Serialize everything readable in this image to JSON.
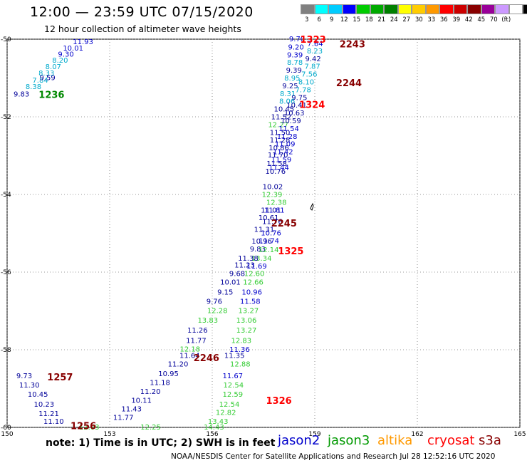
{
  "header": {
    "title": "12:00 — 23:59 UTC 07/15/2020",
    "subtitle": "12 hour collection of altimeter wave heights"
  },
  "colorbar": {
    "colors": [
      "#808080",
      "#00ffff",
      "#00ccff",
      "#0000ff",
      "#00cc00",
      "#00aa00",
      "#008000",
      "#ffff00",
      "#ffcc00",
      "#ff9900",
      "#ff0000",
      "#cc0000",
      "#880000",
      "#990099",
      "#cc99ff",
      "#ffffff",
      "#000000"
    ],
    "labels": [
      "3",
      "6",
      "9",
      "12",
      "15",
      "18",
      "21",
      "24",
      "27",
      "30",
      "33",
      "36",
      "39",
      "42",
      "45",
      "70",
      "(ft)"
    ]
  },
  "chart_data": {
    "type": "scatter",
    "xlim": [
      150,
      165
    ],
    "ylim": [
      -60,
      -50
    ],
    "x_ticks": [
      "150",
      "153",
      "156",
      "159",
      "162",
      "165"
    ],
    "y_ticks": [
      "-50",
      "-52",
      "-54",
      "-56",
      "-58",
      "-60"
    ],
    "satellites": [
      {
        "name": "jason2",
        "color": "#0000cc"
      },
      {
        "name": "jason3",
        "color": "#009900"
      },
      {
        "name": "altika",
        "color": "#ff9900"
      },
      {
        "name": "cryosat",
        "color": "#ff0000"
      },
      {
        "name": "s3a",
        "color": "#880000"
      }
    ],
    "series": [
      {
        "color": "#0000cc",
        "points": [
          [
            152.22,
            -50.07,
            "11.93"
          ],
          [
            151.93,
            -50.24,
            "10.01"
          ],
          [
            151.72,
            -50.39,
            "9.30"
          ]
        ]
      },
      {
        "color": "#00aacc",
        "points": [
          [
            151.55,
            -50.55,
            "8.20"
          ],
          [
            151.35,
            -50.72,
            "8.07"
          ],
          [
            151.15,
            -50.88,
            "8.33"
          ],
          [
            150.97,
            -51.06,
            "7.84"
          ],
          [
            150.77,
            -51.23,
            "8.38"
          ]
        ]
      },
      {
        "color": "#000099",
        "points": [
          [
            151.18,
            -51.0,
            "9.59"
          ],
          [
            150.42,
            -51.42,
            "9.83"
          ]
        ]
      },
      {
        "color": "#0000cc",
        "points": [
          [
            158.48,
            -50.0,
            "9.70"
          ],
          [
            158.45,
            -50.21,
            "9.20"
          ],
          [
            158.42,
            -50.41,
            "9.39"
          ]
        ]
      },
      {
        "color": "#00aacc",
        "points": [
          [
            158.42,
            -50.61,
            "8.78"
          ]
        ]
      },
      {
        "color": "#000099",
        "points": [
          [
            158.39,
            -50.81,
            "9.39"
          ]
        ]
      },
      {
        "color": "#00aacc",
        "points": [
          [
            158.34,
            -51.01,
            "8.95"
          ]
        ]
      },
      {
        "color": "#000099",
        "points": [
          [
            158.28,
            -51.21,
            "9.25"
          ]
        ]
      },
      {
        "color": "#00aacc",
        "points": [
          [
            158.21,
            -51.41,
            "8.31"
          ],
          [
            158.19,
            -51.61,
            "8.06"
          ]
        ]
      },
      {
        "color": "#000099",
        "points": [
          [
            158.1,
            -51.81,
            "10.45"
          ],
          [
            158.02,
            -52.01,
            "11.52"
          ],
          [
            157.98,
            -52.41,
            "11.50"
          ],
          [
            157.98,
            -52.61,
            "11.28"
          ],
          [
            157.95,
            -52.81,
            "10.86"
          ],
          [
            157.92,
            -52.99,
            "11.70"
          ],
          [
            157.89,
            -53.21,
            "11.58"
          ],
          [
            157.85,
            -53.41,
            "10.76"
          ],
          [
            157.77,
            -53.81,
            "10.02"
          ],
          [
            157.72,
            -54.41,
            "11.01"
          ],
          [
            157.65,
            -54.61,
            "10.61"
          ],
          [
            157.52,
            -54.91,
            "11.31"
          ],
          [
            157.45,
            -55.21,
            "10.96"
          ],
          [
            157.33,
            -55.41,
            "9.83"
          ]
        ]
      },
      {
        "color": "#33cc33",
        "points": [
          [
            157.93,
            -52.21,
            "12.27"
          ],
          [
            157.75,
            -54.01,
            "12.39"
          ],
          [
            157.65,
            -55.43,
            "12.14"
          ],
          [
            157.44,
            -55.65,
            "13.34"
          ]
        ]
      },
      {
        "color": "#0000cc",
        "points": [
          [
            159.01,
            -50.12,
            "7.64"
          ]
        ]
      },
      {
        "color": "#00aacc",
        "points": [
          [
            159.0,
            -50.31,
            "8.23"
          ]
        ]
      },
      {
        "color": "#000099",
        "points": [
          [
            158.95,
            -50.51,
            "9.42"
          ]
        ]
      },
      {
        "color": "#00aacc",
        "points": [
          [
            158.93,
            -50.71,
            "7.87"
          ],
          [
            158.84,
            -50.91,
            "7.56"
          ],
          [
            158.75,
            -51.11,
            "8.10"
          ],
          [
            158.66,
            -51.31,
            "7.78"
          ]
        ]
      },
      {
        "color": "#000099",
        "points": [
          [
            158.55,
            -51.51,
            "9.75"
          ],
          [
            158.47,
            -51.71,
            "10.41"
          ],
          [
            158.4,
            -51.91,
            "10.63"
          ],
          [
            158.3,
            -52.11,
            "10.59"
          ]
        ]
      },
      {
        "color": "#0000cc",
        "points": [
          [
            158.24,
            -52.31,
            "11.54"
          ],
          [
            158.19,
            -52.51,
            "11.28"
          ],
          [
            158.13,
            -52.71,
            "11.09"
          ],
          [
            158.07,
            -52.91,
            "11.42"
          ],
          [
            158.02,
            -53.11,
            "11.59"
          ],
          [
            157.95,
            -53.31,
            "11.44"
          ]
        ]
      },
      {
        "color": "#33cc33",
        "points": [
          [
            157.88,
            -54.21,
            "12.38"
          ]
        ]
      },
      {
        "color": "#0000cc",
        "points": [
          [
            157.82,
            -54.41,
            "11.81"
          ]
        ]
      },
      {
        "color": "#000099",
        "points": [
          [
            157.76,
            -54.71,
            "11.76"
          ]
        ]
      },
      {
        "color": "#0000cc",
        "points": [
          [
            157.72,
            -55.0,
            "10.76"
          ],
          [
            157.66,
            -55.2,
            "11.74"
          ]
        ]
      },
      {
        "color": "#000099",
        "points": [
          [
            157.05,
            -55.65,
            "11.38"
          ],
          [
            156.95,
            -55.83,
            "11.23"
          ],
          [
            156.73,
            -56.05,
            "9.68"
          ],
          [
            156.53,
            -56.27,
            "10.01"
          ],
          [
            156.38,
            -56.52,
            "9.15"
          ],
          [
            156.06,
            -56.76,
            "9.76"
          ]
        ]
      },
      {
        "color": "#0000cc",
        "points": [
          [
            157.3,
            -55.85,
            "11.69"
          ]
        ]
      },
      {
        "color": "#33cc33",
        "points": [
          [
            157.23,
            -56.05,
            "12.60"
          ],
          [
            157.2,
            -56.27,
            "12.66"
          ]
        ]
      },
      {
        "color": "#0000cc",
        "points": [
          [
            157.16,
            -56.52,
            "10.96"
          ],
          [
            157.11,
            -56.76,
            "11.58"
          ]
        ]
      },
      {
        "color": "#33cc33",
        "points": [
          [
            157.06,
            -57.0,
            "13.27"
          ],
          [
            157.0,
            -57.25,
            "13.06"
          ],
          [
            157.0,
            -57.5,
            "13.27"
          ],
          [
            156.85,
            -57.77,
            "12.83"
          ],
          [
            156.15,
            -57.0,
            "12.28"
          ],
          [
            155.87,
            -57.25,
            "13.83"
          ],
          [
            155.35,
            -57.99,
            "12.18"
          ],
          [
            156.82,
            -58.38,
            "12.88"
          ],
          [
            156.62,
            -58.92,
            "12.54"
          ],
          [
            156.6,
            -59.16,
            "12.59"
          ],
          [
            156.5,
            -59.41,
            "12.54"
          ],
          [
            156.4,
            -59.62,
            "12.82"
          ],
          [
            156.17,
            -59.85,
            "13.43"
          ],
          [
            156.05,
            -60.0,
            "14.43"
          ],
          [
            152.4,
            -60.0,
            "12.03"
          ],
          [
            154.2,
            -60.0,
            "12.25"
          ]
        ]
      },
      {
        "color": "#0000cc",
        "points": [
          [
            156.8,
            -58.0,
            "11.36"
          ],
          [
            156.6,
            -58.68,
            "11.67"
          ]
        ]
      },
      {
        "color": "#000099",
        "points": [
          [
            156.65,
            -58.16,
            "11.35"
          ],
          [
            155.34,
            -58.16,
            "11.64"
          ],
          [
            155.0,
            -58.38,
            "11.20"
          ],
          [
            154.72,
            -58.62,
            "10.95"
          ],
          [
            154.47,
            -58.85,
            "11.18"
          ],
          [
            154.19,
            -59.08,
            "11.20"
          ],
          [
            153.93,
            -59.31,
            "10.11"
          ],
          [
            153.64,
            -59.53,
            "11.43"
          ],
          [
            153.4,
            -59.75,
            "11.77"
          ],
          [
            155.53,
            -57.77,
            "11.77"
          ],
          [
            155.57,
            -57.5,
            "11.26"
          ],
          [
            150.5,
            -58.68,
            "9.73"
          ],
          [
            150.65,
            -58.92,
            "11.30"
          ],
          [
            150.9,
            -59.16,
            "10.45"
          ],
          [
            151.08,
            -59.41,
            "10.23"
          ],
          [
            151.22,
            -59.65,
            "11.21"
          ],
          [
            151.36,
            -59.85,
            "11.10"
          ]
        ]
      }
    ],
    "pass_labels": [
      {
        "text": "1236",
        "x": 151.3,
        "y": -51.42,
        "color": "#008800"
      },
      {
        "text": "1323",
        "x": 158.95,
        "y": -50.0,
        "color": "#ff0000"
      },
      {
        "text": "2243",
        "x": 160.1,
        "y": -50.12,
        "color": "#880000"
      },
      {
        "text": "2244",
        "x": 160.0,
        "y": -51.12,
        "color": "#880000"
      },
      {
        "text": "1324",
        "x": 158.92,
        "y": -51.68,
        "color": "#ff0000"
      },
      {
        "text": "2245",
        "x": 158.1,
        "y": -54.73,
        "color": "#880000"
      },
      {
        "text": "1325",
        "x": 158.3,
        "y": -55.45,
        "color": "#ff0000"
      },
      {
        "text": "2246",
        "x": 155.83,
        "y": -58.2,
        "color": "#880000"
      },
      {
        "text": "1326",
        "x": 157.95,
        "y": -59.3,
        "color": "#ff0000"
      },
      {
        "text": "1257",
        "x": 151.55,
        "y": -58.7,
        "color": "#880000"
      },
      {
        "text": "1256",
        "x": 152.23,
        "y": -59.95,
        "color": "#880000"
      }
    ]
  },
  "footer": {
    "note": "note: 1) Time is in UTC; 2) SWH is in feet",
    "credit": "NOAA/NESDIS Center for Satellite Applications and Research    Jul 28 12:52:16 UTC 2020"
  }
}
